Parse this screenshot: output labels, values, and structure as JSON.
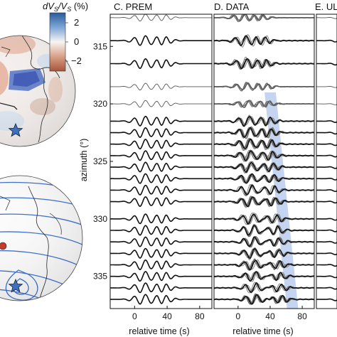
{
  "colorbar": {
    "label": "dV_S/V_S (%)",
    "label_text": "dVS/VS (%)",
    "ticks": [
      "2",
      "0",
      "−2"
    ],
    "range": [
      -2.5,
      2.5
    ],
    "colors": {
      "high": "#2a5b9a",
      "mid": "#f7f5f2",
      "low": "#a8553a"
    }
  },
  "globe_top": {},
  "globe_bottom": {},
  "panels": [
    {
      "id": "C",
      "title": "C. PREM"
    },
    {
      "id": "D",
      "title": "D. DATA"
    },
    {
      "id": "E",
      "title": "E. UL"
    }
  ],
  "chart_data": {
    "type": "line",
    "ylabel": "azimuth (°)",
    "xlabel": "relative time (s)",
    "x_ticks": [
      0,
      40,
      80
    ],
    "xlim": [
      -30,
      95
    ],
    "y_ticks": [
      315,
      320,
      325,
      330,
      335
    ],
    "ylim": [
      312.2,
      337.8
    ],
    "azimuths": [
      312.5,
      314.5,
      316.5,
      318.5,
      320.0,
      321.5,
      322.5,
      323.5,
      324.5,
      325.5,
      326.5,
      327.5,
      328.5,
      330.0,
      331.0,
      332.0,
      333.0,
      334.0,
      335.0,
      336.0,
      337.0
    ],
    "trace_weight": [
      "thin",
      "thick",
      "thick",
      "thin",
      "thin",
      "thick",
      "thick",
      "thick",
      "thick",
      "thick",
      "thick",
      "thick",
      "thick",
      "thick",
      "thick",
      "thick",
      "thick",
      "thick",
      "thick",
      "thick",
      "thick"
    ],
    "highlight_band": {
      "panel": "D",
      "azimuth_range": [
        319,
        337.8
      ],
      "time_start": [
        40,
        68
      ],
      "width_s": 14,
      "color": "#9fb7e8"
    },
    "colors": {
      "thick": "#111111",
      "thin": "#555555",
      "data_overlay": "#6b6b6b"
    }
  }
}
